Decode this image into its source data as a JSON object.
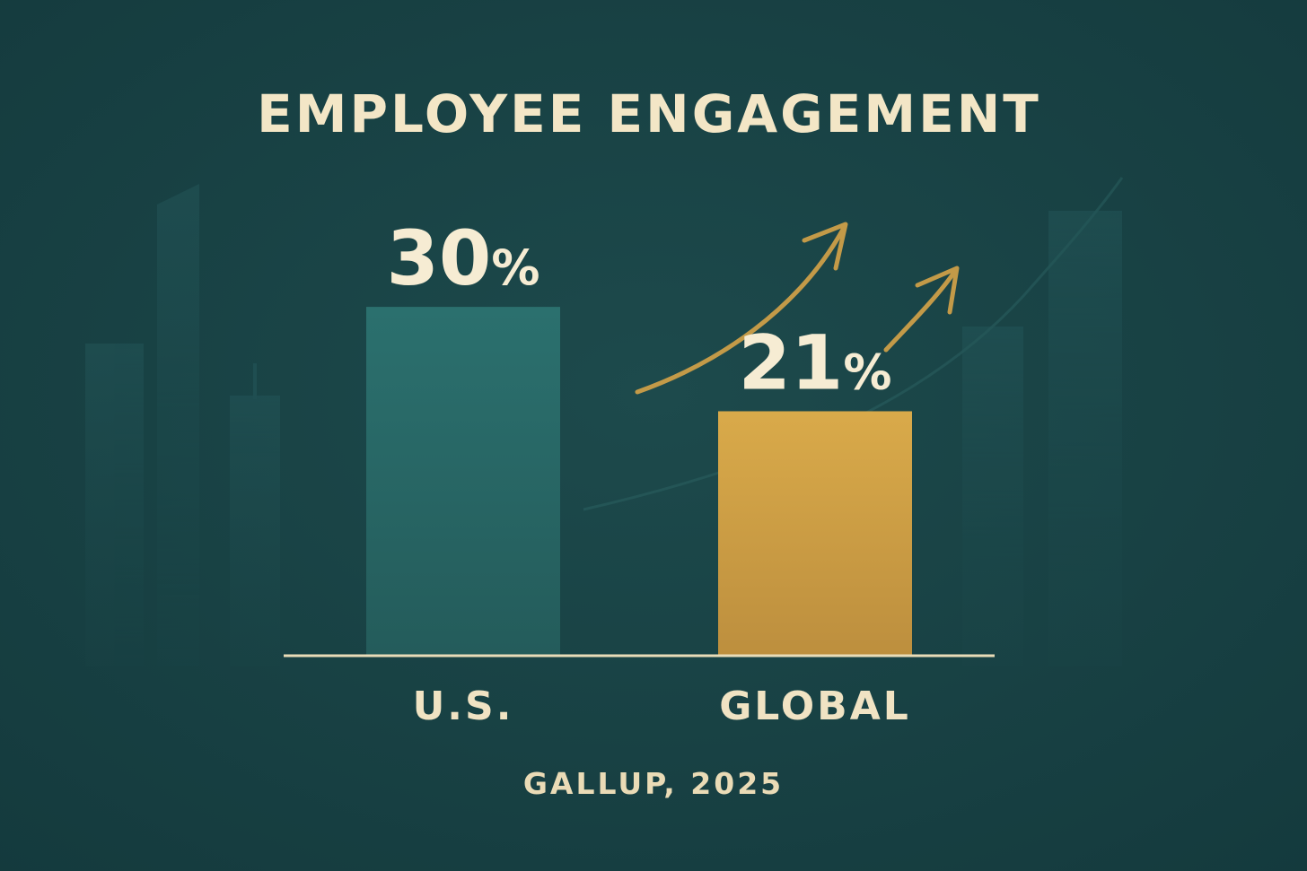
{
  "chart_data": {
    "type": "bar",
    "title": "EMPLOYEE ENGAGEMENT",
    "categories": [
      "U.S.",
      "GLOBAL"
    ],
    "values": [
      30,
      21
    ],
    "value_labels": [
      "30%",
      "21%"
    ],
    "unit": "%",
    "source": "GALLUP, 2025",
    "bar_colors": [
      "#2a6b6a",
      "#d4a544"
    ],
    "grid": false,
    "legend": false
  },
  "theme": {
    "background": "#1a4548",
    "accent": "#c39a48",
    "text": "#f3e6c6"
  }
}
